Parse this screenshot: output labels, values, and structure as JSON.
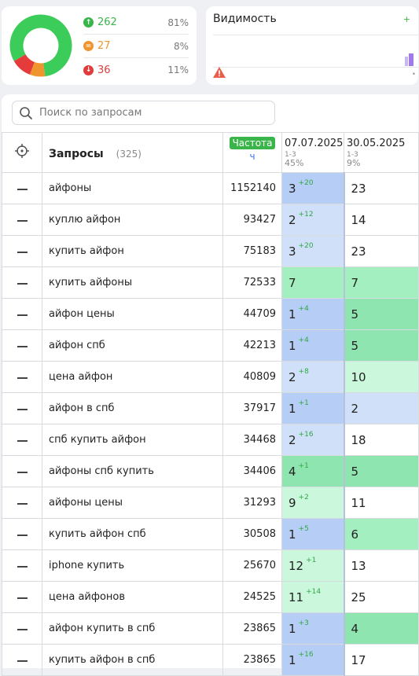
{
  "stats": {
    "up": {
      "value": "262",
      "pct": "81%",
      "color": "#3ab54a"
    },
    "same": {
      "value": "27",
      "pct": "8%",
      "color": "#f0952e"
    },
    "down": {
      "value": "36",
      "pct": "11%",
      "color": "#e03c3c"
    },
    "donut": [
      {
        "name": "up",
        "fraction": 0.81,
        "color": "#3ccc5a"
      },
      {
        "name": "same",
        "fraction": 0.08,
        "color": "#f0952e"
      },
      {
        "name": "down",
        "fraction": 0.11,
        "color": "#e63b3b"
      }
    ]
  },
  "visibility": {
    "title": "Видимость",
    "plus": "+",
    "dot": "•"
  },
  "search": {
    "placeholder": "Поиск по запросам"
  },
  "table": {
    "header": {
      "queries_title": "Запросы",
      "queries_count": "(325)",
      "freq_label": "Частота",
      "freq_unit": "ч",
      "date1": "07.07.2025",
      "date1_range": "1-3",
      "date1_pct": "45%",
      "date2": "30.05.2025",
      "date2_range": "1-3",
      "date2_pct": "9%"
    },
    "rows": [
      {
        "query": "айфоны",
        "freq": "1152140",
        "p1": "3",
        "c1": "+20",
        "bg1": "blue",
        "p2": "23",
        "bg2": "white"
      },
      {
        "query": "куплю айфон",
        "freq": "93427",
        "p1": "2",
        "c1": "+12",
        "bg1": "lblue",
        "p2": "14",
        "bg2": "white"
      },
      {
        "query": "купить айфон",
        "freq": "75183",
        "p1": "3",
        "c1": "+20",
        "bg1": "lblue",
        "p2": "23",
        "bg2": "white"
      },
      {
        "query": "купить айфоны",
        "freq": "72533",
        "p1": "7",
        "c1": "",
        "bg1": "green",
        "p2": "7",
        "bg2": "green"
      },
      {
        "query": "айфон цены",
        "freq": "44709",
        "p1": "1",
        "c1": "+4",
        "bg1": "blue",
        "p2": "5",
        "bg2": "mgreen"
      },
      {
        "query": "айфон спб",
        "freq": "42213",
        "p1": "1",
        "c1": "+4",
        "bg1": "blue",
        "p2": "5",
        "bg2": "mgreen"
      },
      {
        "query": "цена айфон",
        "freq": "40809",
        "p1": "2",
        "c1": "+8",
        "bg1": "lblue",
        "p2": "10",
        "bg2": "lgreen"
      },
      {
        "query": "айфон в спб",
        "freq": "37917",
        "p1": "1",
        "c1": "+1",
        "bg1": "blue",
        "p2": "2",
        "bg2": "lblue"
      },
      {
        "query": "спб купить айфон",
        "freq": "34468",
        "p1": "2",
        "c1": "+16",
        "bg1": "lblue",
        "p2": "18",
        "bg2": "white"
      },
      {
        "query": "айфоны спб купить",
        "freq": "34406",
        "p1": "4",
        "c1": "+1",
        "bg1": "mgreen",
        "p2": "5",
        "bg2": "mgreen"
      },
      {
        "query": "айфоны цены",
        "freq": "31293",
        "p1": "9",
        "c1": "+2",
        "bg1": "lgreen",
        "p2": "11",
        "bg2": "white"
      },
      {
        "query": "купить айфон спб",
        "freq": "30508",
        "p1": "1",
        "c1": "+5",
        "bg1": "blue",
        "p2": "6",
        "bg2": "green"
      },
      {
        "query": "iphone купить",
        "freq": "25670",
        "p1": "12",
        "c1": "+1",
        "bg1": "lgreen",
        "p2": "13",
        "bg2": "white"
      },
      {
        "query": "цена айфонов",
        "freq": "24525",
        "p1": "11",
        "c1": "+14",
        "bg1": "lgreen",
        "p2": "25",
        "bg2": "white"
      },
      {
        "query": "айфон купить в спб",
        "freq": "23865",
        "p1": "1",
        "c1": "+3",
        "bg1": "blue",
        "p2": "4",
        "bg2": "mgreen"
      },
      {
        "query": "купить айфон в спб",
        "freq": "23865",
        "p1": "1",
        "c1": "+16",
        "bg1": "blue",
        "p2": "17",
        "bg2": "white"
      }
    ]
  }
}
